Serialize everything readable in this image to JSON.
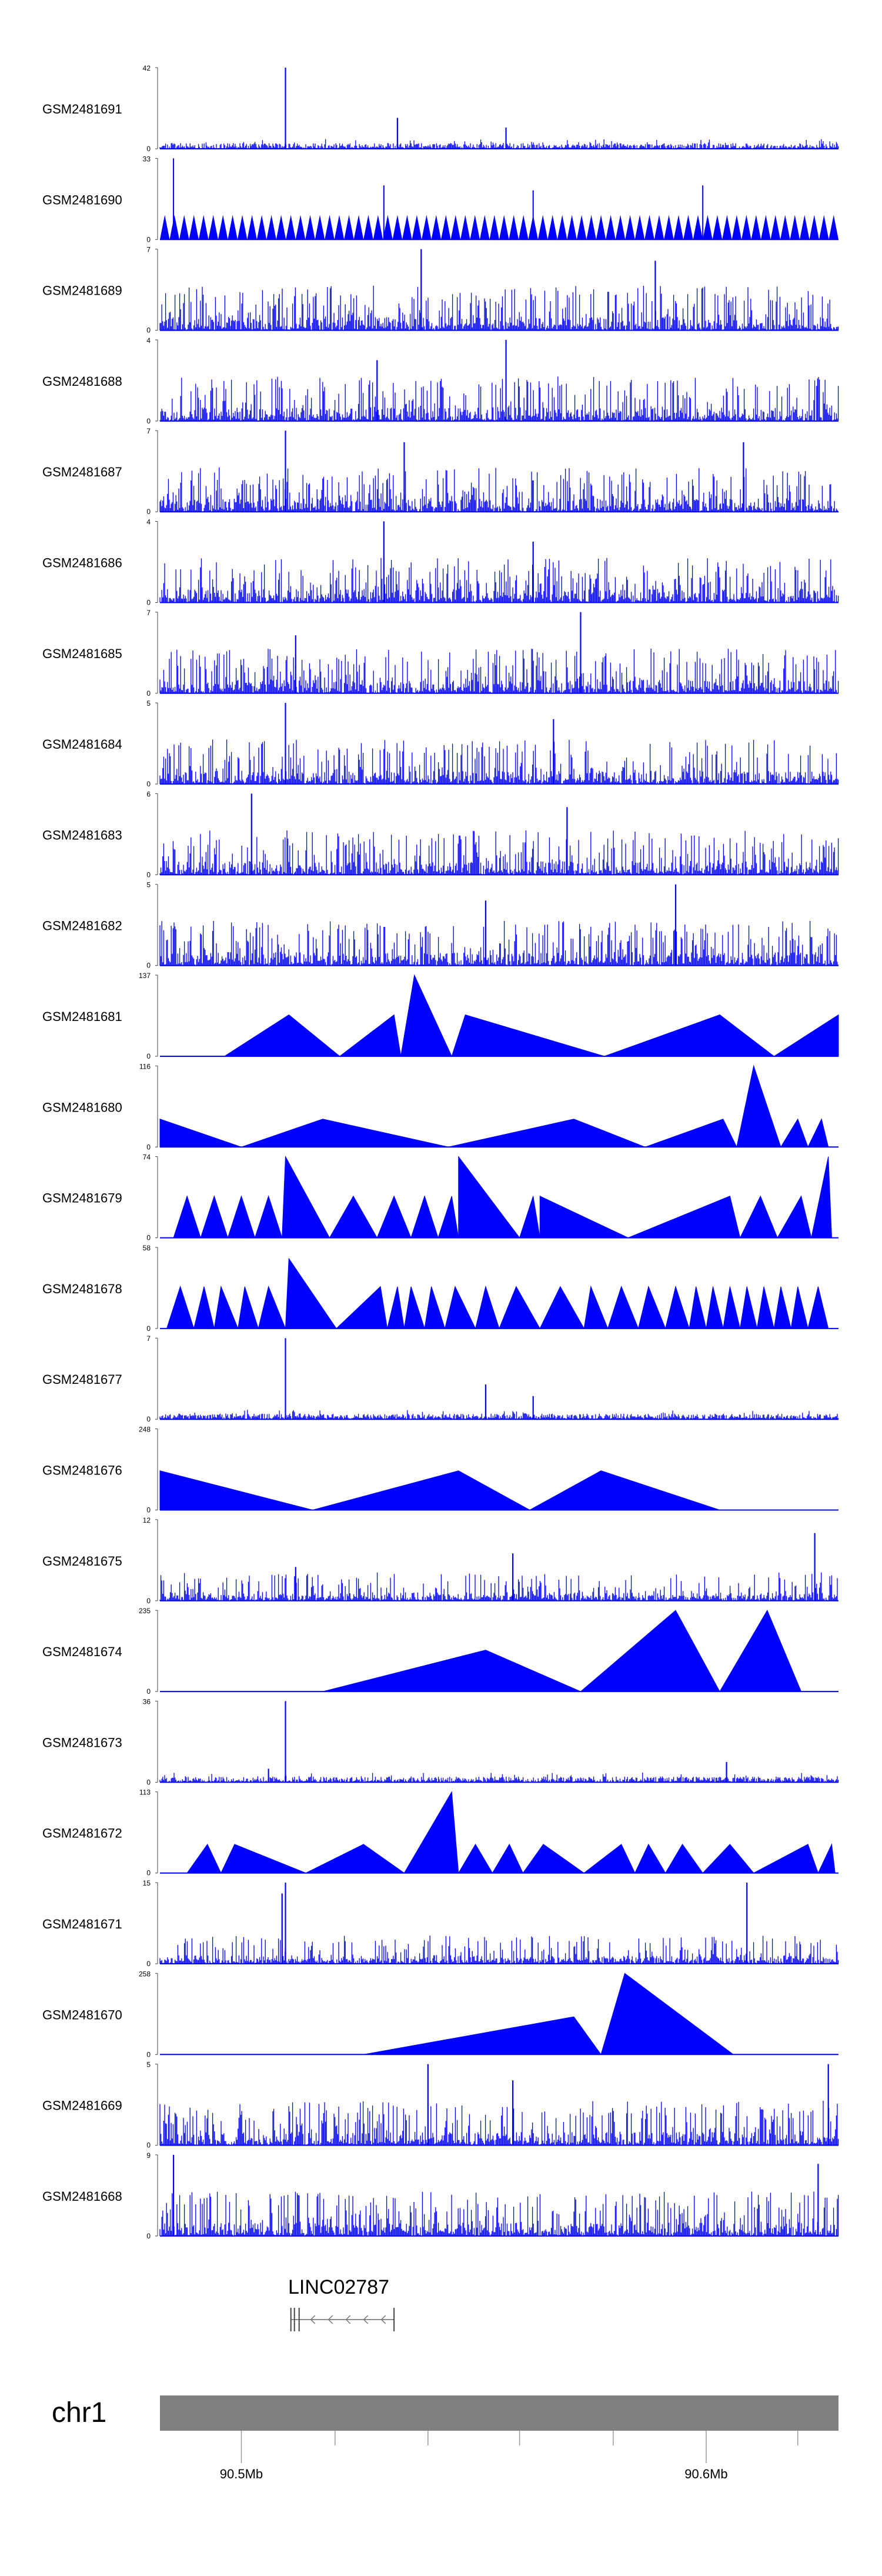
{
  "chart_data": {
    "type": "genome-browser-area",
    "chromosome": "chr1",
    "series_color": "#0000ff",
    "ideogram_color": "#808080",
    "tracks": [
      {
        "name": "GSM2481691",
        "ymax": 42,
        "pattern": "sparse",
        "spikes": [
          [
            0.185,
            42
          ],
          [
            0.35,
            16
          ],
          [
            0.51,
            11
          ]
        ]
      },
      {
        "name": "GSM2481690",
        "ymax": 33,
        "pattern": "teeth",
        "teeth": 70,
        "base": 10,
        "spikes": [
          [
            0.02,
            33
          ],
          [
            0.33,
            22
          ],
          [
            0.55,
            20
          ],
          [
            0.8,
            22
          ]
        ]
      },
      {
        "name": "GSM2481689",
        "ymax": 7,
        "pattern": "dense",
        "spikes": [
          [
            0.385,
            7
          ],
          [
            0.73,
            6
          ]
        ]
      },
      {
        "name": "GSM2481688",
        "ymax": 4,
        "pattern": "dense",
        "spikes": [
          [
            0.51,
            4
          ],
          [
            0.32,
            3
          ]
        ]
      },
      {
        "name": "GSM2481687",
        "ymax": 7,
        "pattern": "dense",
        "spikes": [
          [
            0.185,
            7
          ],
          [
            0.36,
            6
          ],
          [
            0.86,
            6
          ]
        ]
      },
      {
        "name": "GSM2481686",
        "ymax": 4,
        "pattern": "dense",
        "spikes": [
          [
            0.33,
            4
          ],
          [
            0.55,
            3
          ]
        ]
      },
      {
        "name": "GSM2481685",
        "ymax": 7,
        "pattern": "dense",
        "spikes": [
          [
            0.62,
            7
          ],
          [
            0.2,
            5
          ]
        ]
      },
      {
        "name": "GSM2481684",
        "ymax": 5,
        "pattern": "dense",
        "spikes": [
          [
            0.185,
            5
          ],
          [
            0.58,
            4
          ]
        ]
      },
      {
        "name": "GSM2481683",
        "ymax": 6,
        "pattern": "dense",
        "spikes": [
          [
            0.135,
            6
          ],
          [
            0.6,
            5
          ]
        ]
      },
      {
        "name": "GSM2481682",
        "ymax": 5,
        "pattern": "dense",
        "spikes": [
          [
            0.76,
            5
          ],
          [
            0.48,
            4
          ]
        ]
      },
      {
        "name": "GSM2481681",
        "ymax": 137,
        "pattern": "triangles",
        "triangles": [
          [
            0.095,
            0.265,
            0.19,
            70
          ],
          [
            0.265,
            0.355,
            0.345,
            70
          ],
          [
            0.355,
            0.43,
            0.375,
            137
          ],
          [
            0.43,
            0.655,
            0.45,
            70
          ],
          [
            0.655,
            0.905,
            0.825,
            70
          ],
          [
            0.905,
            1.0,
            1.0,
            70
          ]
        ]
      },
      {
        "name": "GSM2481680",
        "ymax": 116,
        "pattern": "triangles",
        "triangles": [
          [
            0.0,
            0.12,
            0.0,
            40
          ],
          [
            0.12,
            0.425,
            0.24,
            40
          ],
          [
            0.425,
            0.715,
            0.61,
            40
          ],
          [
            0.715,
            0.85,
            0.83,
            40
          ],
          [
            0.85,
            0.915,
            0.875,
            116
          ],
          [
            0.915,
            0.955,
            0.94,
            40
          ],
          [
            0.955,
            0.985,
            0.975,
            40
          ]
        ]
      },
      {
        "name": "GSM2481679",
        "ymax": 74,
        "pattern": "triangles",
        "triangles": [
          [
            0.02,
            0.06,
            0.04,
            38
          ],
          [
            0.06,
            0.1,
            0.08,
            38
          ],
          [
            0.1,
            0.14,
            0.12,
            38
          ],
          [
            0.14,
            0.18,
            0.16,
            38
          ],
          [
            0.18,
            0.25,
            0.185,
            74
          ],
          [
            0.25,
            0.32,
            0.285,
            38
          ],
          [
            0.32,
            0.37,
            0.345,
            38
          ],
          [
            0.37,
            0.41,
            0.39,
            38
          ],
          [
            0.41,
            0.44,
            0.43,
            38
          ],
          [
            0.44,
            0.53,
            0.44,
            74
          ],
          [
            0.53,
            0.56,
            0.55,
            38
          ],
          [
            0.56,
            0.69,
            0.56,
            38
          ],
          [
            0.69,
            0.855,
            0.84,
            38
          ],
          [
            0.855,
            0.91,
            0.885,
            38
          ],
          [
            0.91,
            0.96,
            0.945,
            38
          ],
          [
            0.96,
            0.99,
            0.985,
            74
          ]
        ]
      },
      {
        "name": "GSM2481678",
        "ymax": 58,
        "pattern": "triangles",
        "triangles": [
          [
            0.01,
            0.05,
            0.03,
            30
          ],
          [
            0.05,
            0.08,
            0.065,
            30
          ],
          [
            0.08,
            0.115,
            0.09,
            30
          ],
          [
            0.115,
            0.145,
            0.125,
            30
          ],
          [
            0.145,
            0.185,
            0.16,
            30
          ],
          [
            0.185,
            0.26,
            0.19,
            50
          ],
          [
            0.26,
            0.335,
            0.325,
            30
          ],
          [
            0.335,
            0.36,
            0.35,
            30
          ],
          [
            0.36,
            0.39,
            0.37,
            30
          ],
          [
            0.39,
            0.42,
            0.4,
            30
          ],
          [
            0.42,
            0.465,
            0.435,
            30
          ],
          [
            0.465,
            0.5,
            0.48,
            30
          ],
          [
            0.5,
            0.56,
            0.525,
            30
          ],
          [
            0.56,
            0.625,
            0.59,
            30
          ],
          [
            0.625,
            0.66,
            0.635,
            30
          ],
          [
            0.66,
            0.705,
            0.68,
            30
          ],
          [
            0.705,
            0.745,
            0.72,
            30
          ],
          [
            0.745,
            0.78,
            0.76,
            30
          ],
          [
            0.78,
            0.805,
            0.79,
            30
          ],
          [
            0.805,
            0.83,
            0.815,
            30
          ],
          [
            0.83,
            0.855,
            0.84,
            30
          ],
          [
            0.855,
            0.88,
            0.865,
            30
          ],
          [
            0.88,
            0.905,
            0.89,
            30
          ],
          [
            0.905,
            0.93,
            0.915,
            30
          ],
          [
            0.93,
            0.955,
            0.94,
            30
          ],
          [
            0.955,
            0.985,
            0.97,
            30
          ]
        ]
      },
      {
        "name": "GSM2481677",
        "ymax": 7,
        "pattern": "sparse",
        "spikes": [
          [
            0.185,
            7
          ],
          [
            0.48,
            3
          ],
          [
            0.55,
            2
          ]
        ]
      },
      {
        "name": "GSM2481676",
        "ymax": 248,
        "pattern": "triangles",
        "triangles": [
          [
            0.0,
            0.225,
            0.0,
            120
          ],
          [
            0.225,
            0.545,
            0.44,
            120
          ],
          [
            0.545,
            0.825,
            0.65,
            120
          ]
        ]
      },
      {
        "name": "GSM2481675",
        "ymax": 12,
        "pattern": "medium",
        "spikes": [
          [
            0.965,
            10
          ],
          [
            0.52,
            7
          ],
          [
            0.2,
            5
          ]
        ]
      },
      {
        "name": "GSM2481674",
        "ymax": 235,
        "pattern": "triangles",
        "triangles": [
          [
            0.24,
            0.62,
            0.48,
            120
          ],
          [
            0.62,
            0.825,
            0.76,
            235
          ],
          [
            0.825,
            0.945,
            0.895,
            235
          ]
        ]
      },
      {
        "name": "GSM2481673",
        "ymax": 36,
        "pattern": "sparse",
        "spikes": [
          [
            0.185,
            36
          ],
          [
            0.835,
            9
          ],
          [
            0.16,
            6
          ]
        ]
      },
      {
        "name": "GSM2481672",
        "ymax": 113,
        "pattern": "triangles",
        "triangles": [
          [
            0.04,
            0.09,
            0.07,
            40
          ],
          [
            0.09,
            0.215,
            0.11,
            40
          ],
          [
            0.215,
            0.36,
            0.3,
            40
          ],
          [
            0.36,
            0.44,
            0.43,
            113
          ],
          [
            0.44,
            0.49,
            0.465,
            40
          ],
          [
            0.49,
            0.535,
            0.515,
            40
          ],
          [
            0.535,
            0.625,
            0.565,
            40
          ],
          [
            0.625,
            0.7,
            0.68,
            40
          ],
          [
            0.7,
            0.745,
            0.72,
            40
          ],
          [
            0.745,
            0.8,
            0.77,
            40
          ],
          [
            0.8,
            0.875,
            0.84,
            40
          ],
          [
            0.875,
            0.97,
            0.955,
            40
          ],
          [
            0.97,
            0.995,
            0.99,
            40
          ]
        ]
      },
      {
        "name": "GSM2481671",
        "ymax": 15,
        "pattern": "medium",
        "spikes": [
          [
            0.185,
            15
          ],
          [
            0.865,
            15
          ],
          [
            0.18,
            13
          ]
        ]
      },
      {
        "name": "GSM2481670",
        "ymax": 258,
        "pattern": "triangles",
        "triangles": [
          [
            0.3,
            0.65,
            0.61,
            120
          ],
          [
            0.65,
            0.845,
            0.685,
            258
          ]
        ]
      },
      {
        "name": "GSM2481669",
        "ymax": 5,
        "pattern": "dense",
        "spikes": [
          [
            0.395,
            5
          ],
          [
            0.52,
            4
          ],
          [
            0.985,
            5
          ]
        ]
      },
      {
        "name": "GSM2481668",
        "ymax": 9,
        "pattern": "dense",
        "spikes": [
          [
            0.02,
            9
          ],
          [
            0.97,
            8
          ]
        ]
      }
    ],
    "gene": {
      "name": "LINC02787",
      "strand": "-",
      "start_frac": 0.193,
      "end_frac": 0.345
    },
    "axis": {
      "ticks": [
        {
          "label": "90.5Mb",
          "frac": 0.12
        },
        {
          "label": "90.6Mb",
          "frac": 0.805
        }
      ],
      "minor_fracs": [
        0.258,
        0.395,
        0.53,
        0.668,
        0.94
      ]
    }
  }
}
